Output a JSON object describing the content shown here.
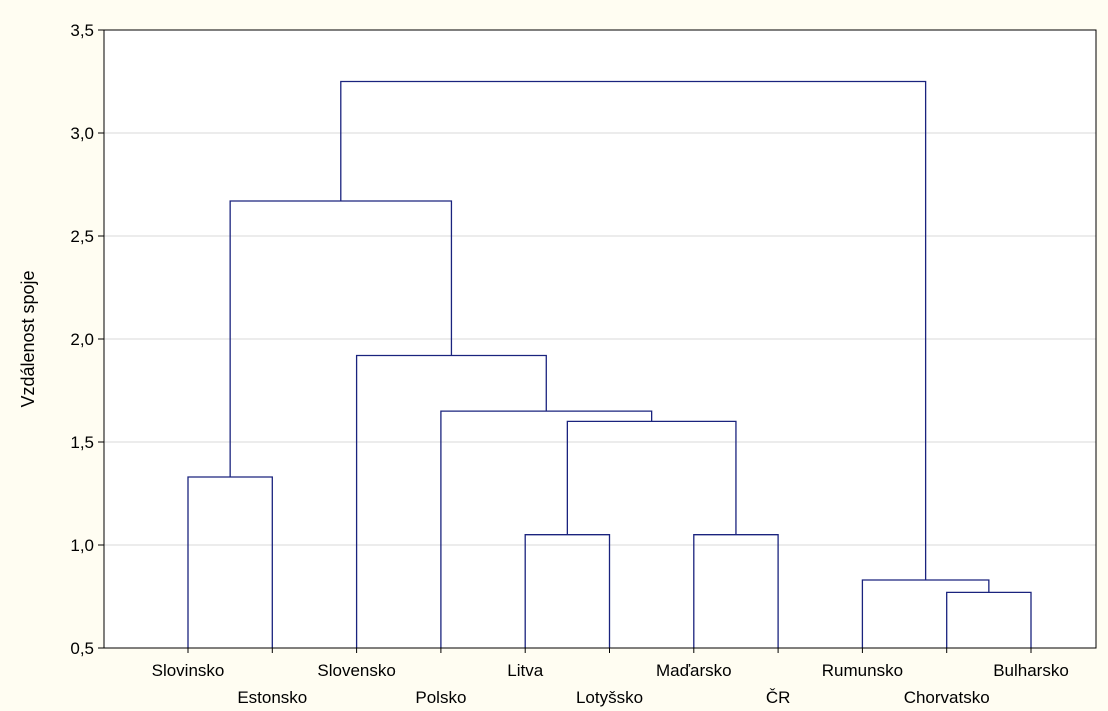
{
  "colors": {
    "background": "#fffdf2",
    "plot_area": "#ffffff",
    "frame": "#000000",
    "grid": "#d9d9d9",
    "branch": "#1a237e"
  },
  "chart_data": {
    "type": "dendrogram",
    "ylabel": "Vzdálenost spoje",
    "ylim": [
      0.5,
      3.5
    ],
    "yticks": [
      {
        "value": 0.5,
        "label": "0,5"
      },
      {
        "value": 1.0,
        "label": "1,0"
      },
      {
        "value": 1.5,
        "label": "1,5"
      },
      {
        "value": 2.0,
        "label": "2,0"
      },
      {
        "value": 2.5,
        "label": "2,5"
      },
      {
        "value": 3.0,
        "label": "3,0"
      },
      {
        "value": 3.5,
        "label": "3,5"
      }
    ],
    "grid": true,
    "leaves": [
      "Slovinsko",
      "Estonsko",
      "Slovensko",
      "Polsko",
      "Litva",
      "Lotyšsko",
      "Maďarsko",
      "ČR",
      "Rumunsko",
      "Chorvatsko",
      "Bulharsko"
    ],
    "merges": [
      {
        "left": "Slovinsko",
        "right": "Estonsko",
        "height": 1.33
      },
      {
        "left": "Litva",
        "right": "Lotyšsko",
        "height": 1.05
      },
      {
        "left": "Maďarsko",
        "right": "ČR",
        "height": 1.05
      },
      {
        "left": "Chorvatsko",
        "right": "Bulharsko",
        "height": 0.77
      },
      {
        "left": "Rumunsko",
        "right": "Chorvatsko+Bulharsko",
        "height": 0.83
      },
      {
        "left": "Litva+Lotyšsko",
        "right": "Maďarsko+ČR",
        "height": 1.6
      },
      {
        "left": "Polsko",
        "right": "Litva+Lotyšsko+Maďarsko+ČR",
        "height": 1.65
      },
      {
        "left": "Slovensko",
        "right": "Polsko+Litva+Lotyšsko+Maďarsko+ČR",
        "height": 1.92
      },
      {
        "left": "Slovinsko+Estonsko",
        "right": "Slovensko+Polsko+Litva+Lotyšsko+Maďarsko+ČR",
        "height": 2.67
      },
      {
        "left": "Slovinsko+Estonsko+Slovensko+Polsko+Litva+Lotyšsko+Maďarsko+ČR",
        "right": "Rumunsko+Chorvatsko+Bulharsko",
        "height": 3.25
      }
    ]
  }
}
